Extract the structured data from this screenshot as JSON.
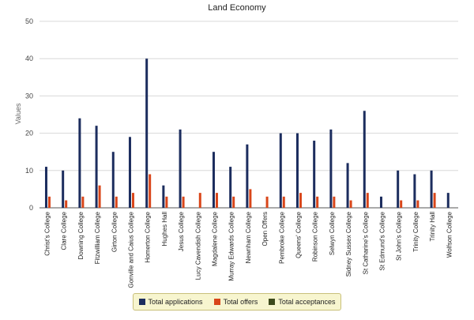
{
  "chart_data": {
    "type": "bar",
    "title": "Land Economy",
    "xlabel": "",
    "ylabel": "Values",
    "ylim": [
      0,
      50
    ],
    "yticks": [
      0,
      10,
      20,
      30,
      40,
      50
    ],
    "grid": true,
    "legend_position": "bottom",
    "categories": [
      "Christ's College",
      "Clare College",
      "Downing College",
      "Fitzwilliam College",
      "Girton College",
      "Gonville and Caius College",
      "Homerton College",
      "Hughes Hall",
      "Jesus College",
      "Lucy Cavendish College",
      "Magdalene College",
      "Murray Edwards College",
      "Newnham College",
      "Open Offers",
      "Pembroke College",
      "Queens' College",
      "Robinson College",
      "Selwyn College",
      "Sidney Sussex College",
      "St Catharine's College",
      "St Edmund's College",
      "St John's College",
      "Trinity College",
      "Trinity Hall",
      "Wolfson College"
    ],
    "series": [
      {
        "name": "Total applications",
        "color": "#1c2d5e",
        "values": [
          11,
          10,
          24,
          22,
          15,
          19,
          40,
          6,
          21,
          0,
          15,
          11,
          17,
          0,
          20,
          20,
          18,
          21,
          12,
          26,
          3,
          10,
          9,
          10,
          4
        ]
      },
      {
        "name": "Total offers",
        "color": "#d9461a",
        "values": [
          3,
          2,
          3,
          6,
          3,
          4,
          9,
          3,
          3,
          4,
          4,
          3,
          5,
          3,
          3,
          4,
          3,
          3,
          2,
          4,
          0,
          2,
          2,
          4,
          0
        ]
      },
      {
        "name": "Total acceptances",
        "color": "#3d4a1c",
        "values": [
          0,
          0,
          0,
          0,
          0,
          0,
          0,
          0,
          0,
          0,
          0,
          0,
          0,
          0,
          0,
          0,
          0,
          0,
          0,
          0,
          0,
          0,
          0,
          0,
          0
        ]
      }
    ]
  }
}
